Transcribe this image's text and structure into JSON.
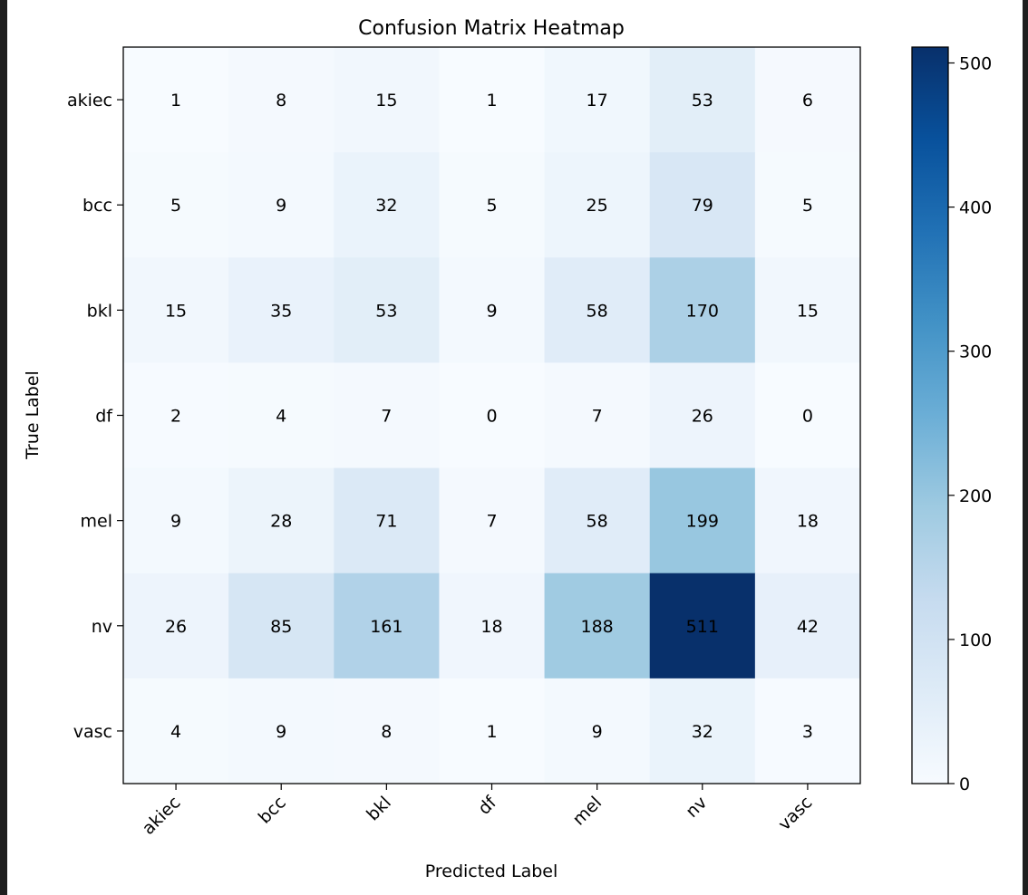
{
  "chart_data": {
    "type": "heatmap",
    "title": "Confusion Matrix Heatmap",
    "xlabel": "Predicted Label",
    "ylabel": "True Label",
    "x_categories": [
      "akiec",
      "bcc",
      "bkl",
      "df",
      "mel",
      "nv",
      "vasc"
    ],
    "y_categories": [
      "akiec",
      "bcc",
      "bkl",
      "df",
      "mel",
      "nv",
      "vasc"
    ],
    "values": [
      [
        1,
        8,
        15,
        1,
        17,
        53,
        6
      ],
      [
        5,
        9,
        32,
        5,
        25,
        79,
        5
      ],
      [
        15,
        35,
        53,
        9,
        58,
        170,
        15
      ],
      [
        2,
        4,
        7,
        0,
        7,
        26,
        0
      ],
      [
        9,
        28,
        71,
        7,
        58,
        199,
        18
      ],
      [
        26,
        85,
        161,
        18,
        188,
        511,
        42
      ],
      [
        4,
        9,
        8,
        1,
        9,
        32,
        3
      ]
    ],
    "colormap": "Blues",
    "colorbar": {
      "range": [
        0,
        511
      ],
      "ticks": [
        0,
        100,
        200,
        300,
        400,
        500
      ]
    }
  }
}
